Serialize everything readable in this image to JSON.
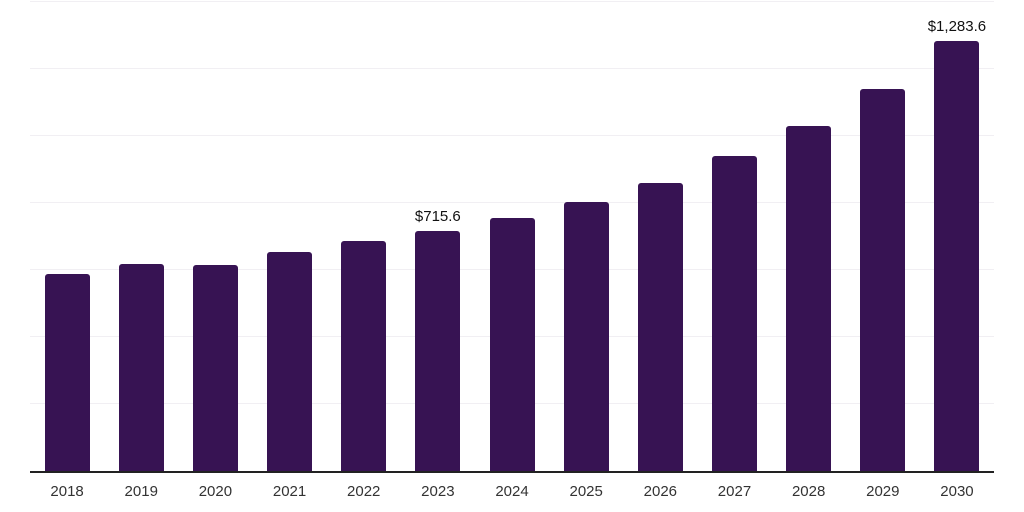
{
  "page": {
    "background_color": "#ffffff"
  },
  "chart_data": {
    "type": "bar",
    "title": "",
    "xlabel": "",
    "ylabel": "",
    "categories": [
      "2018",
      "2019",
      "2020",
      "2021",
      "2022",
      "2023",
      "2024",
      "2025",
      "2026",
      "2027",
      "2028",
      "2029",
      "2030"
    ],
    "values": [
      588,
      618,
      615,
      653,
      687,
      715.6,
      755,
      802,
      859,
      941,
      1029,
      1140,
      1283.6
    ],
    "data_labels": [
      "",
      "",
      "",
      "",
      "",
      "$715.6",
      "",
      "",
      "",
      "",
      "",
      "",
      "$1,283.6"
    ],
    "ylim": [
      0,
      1400
    ],
    "grid_step": 200,
    "grid": "horizontal-only",
    "legend_position": "none",
    "y_axis_labels_visible": false,
    "bar_color": "#371353",
    "gridline_color": "#f1eff3",
    "axis_line_color": "#222222",
    "tick_label_color": "#333333",
    "data_label_color": "#111111"
  }
}
